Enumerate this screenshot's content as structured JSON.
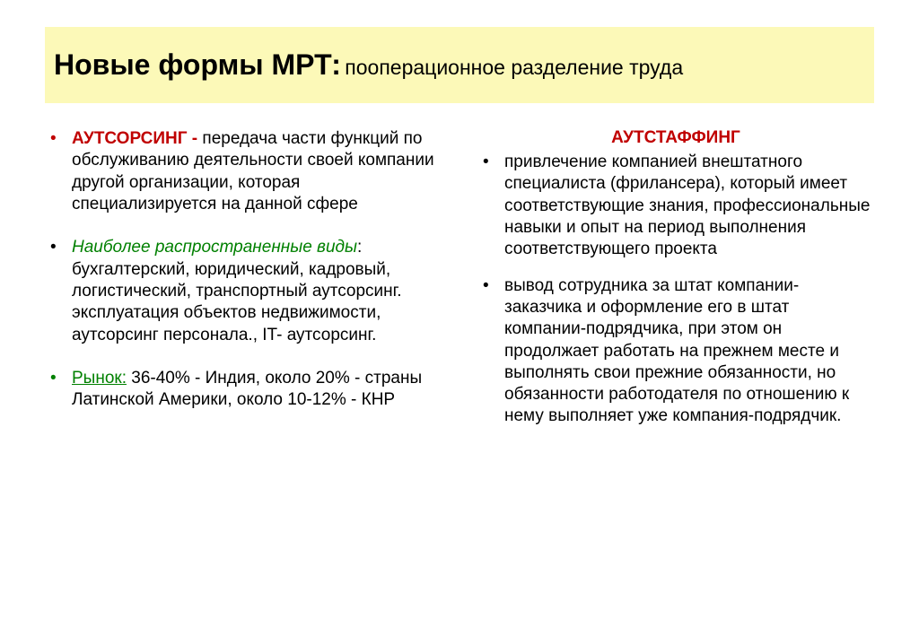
{
  "colors": {
    "title_bg": "#fcf9b8",
    "text": "#000000",
    "red": "#c00000",
    "green": "#008000",
    "bullet_red": "#c00000",
    "bullet_green": "#008000",
    "bullet_black": "#000000"
  },
  "title": {
    "main": "Новые формы МРТ:",
    "sub": " пооперационное разделение труда"
  },
  "left": {
    "item1": {
      "lead": "АУТСОРСИНГ -",
      "rest": " передача части функций по обслуживанию деятельности своей компании другой организации, которая специализируется на данной сфере"
    },
    "item2": {
      "lead": " Наиболее распространенные виды",
      "colon": ": ",
      "rest": "бухгалтерский, юридический,  кадровый,  логистический, транспортный аутсорсинг. эксплуатация объектов недвижимости, аутсорсинг персонала., IT- аутсорсинг."
    },
    "item3": {
      "lead": "Рынок:",
      "rest": " 36-40% - Индия, около 20% - страны Латинской Америки, около 10-12% - КНР"
    }
  },
  "right": {
    "heading": "АУТСТАФФИНГ",
    "item1": "привлечение компанией внештатного специалиста (фрилансера), который имеет соответствующие знания, профессиональные навыки и опыт на период выполнения соответствующего проекта",
    "item2": "вывод сотрудника за штат компании-заказчика и оформление его в штат компании-подрядчика, при этом он продолжает работать на прежнем месте и выполнять свои прежние обязанности, но обязанности работодателя по отношению к нему выполняет уже компания-подрядчик."
  }
}
